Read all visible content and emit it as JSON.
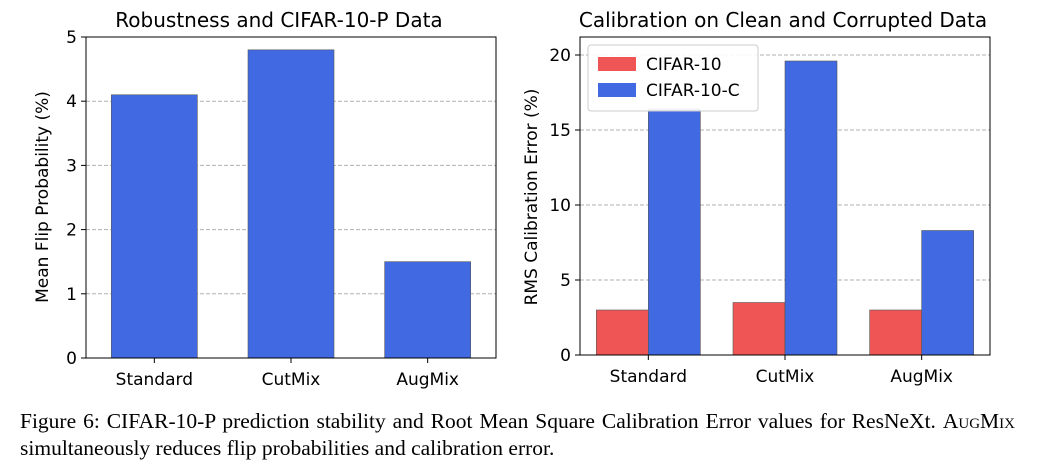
{
  "chart_data": [
    {
      "type": "bar",
      "title": "Robustness and CIFAR-10-P Data",
      "xlabel": "",
      "ylabel": "Mean Flip Probability (%)",
      "categories": [
        "Standard",
        "CutMix",
        "AugMix"
      ],
      "series": [
        {
          "values": [
            4.1,
            4.8,
            1.5
          ],
          "color": "#4169e1"
        }
      ],
      "ylim": [
        0,
        5
      ],
      "yticks": [
        0,
        1,
        2,
        3,
        4,
        5
      ],
      "grid": "y-dashed",
      "legend": null
    },
    {
      "type": "bar",
      "title": "Calibration on Clean and Corrupted Data",
      "xlabel": "",
      "ylabel": "RMS Calibration Error (%)",
      "categories": [
        "Standard",
        "CutMix",
        "AugMix"
      ],
      "series": [
        {
          "name": "CIFAR-10",
          "values": [
            3.0,
            3.5,
            3.0
          ],
          "color": "#f05555"
        },
        {
          "name": "CIFAR-10-C",
          "values": [
            16.4,
            19.6,
            8.3
          ],
          "color": "#4169e1"
        }
      ],
      "ylim": [
        0,
        21.2
      ],
      "yticks": [
        0,
        5,
        10,
        15,
        20
      ],
      "grid": "y-dashed",
      "legend": "top-left"
    }
  ],
  "caption": {
    "prefix": "Figure 6:  CIFAR-10-P prediction stability and Root Mean Square Calibration Error values for ResNeXt. ",
    "method": "AugMix",
    "suffix": " simultaneously reduces flip probabilities and calibration error."
  }
}
